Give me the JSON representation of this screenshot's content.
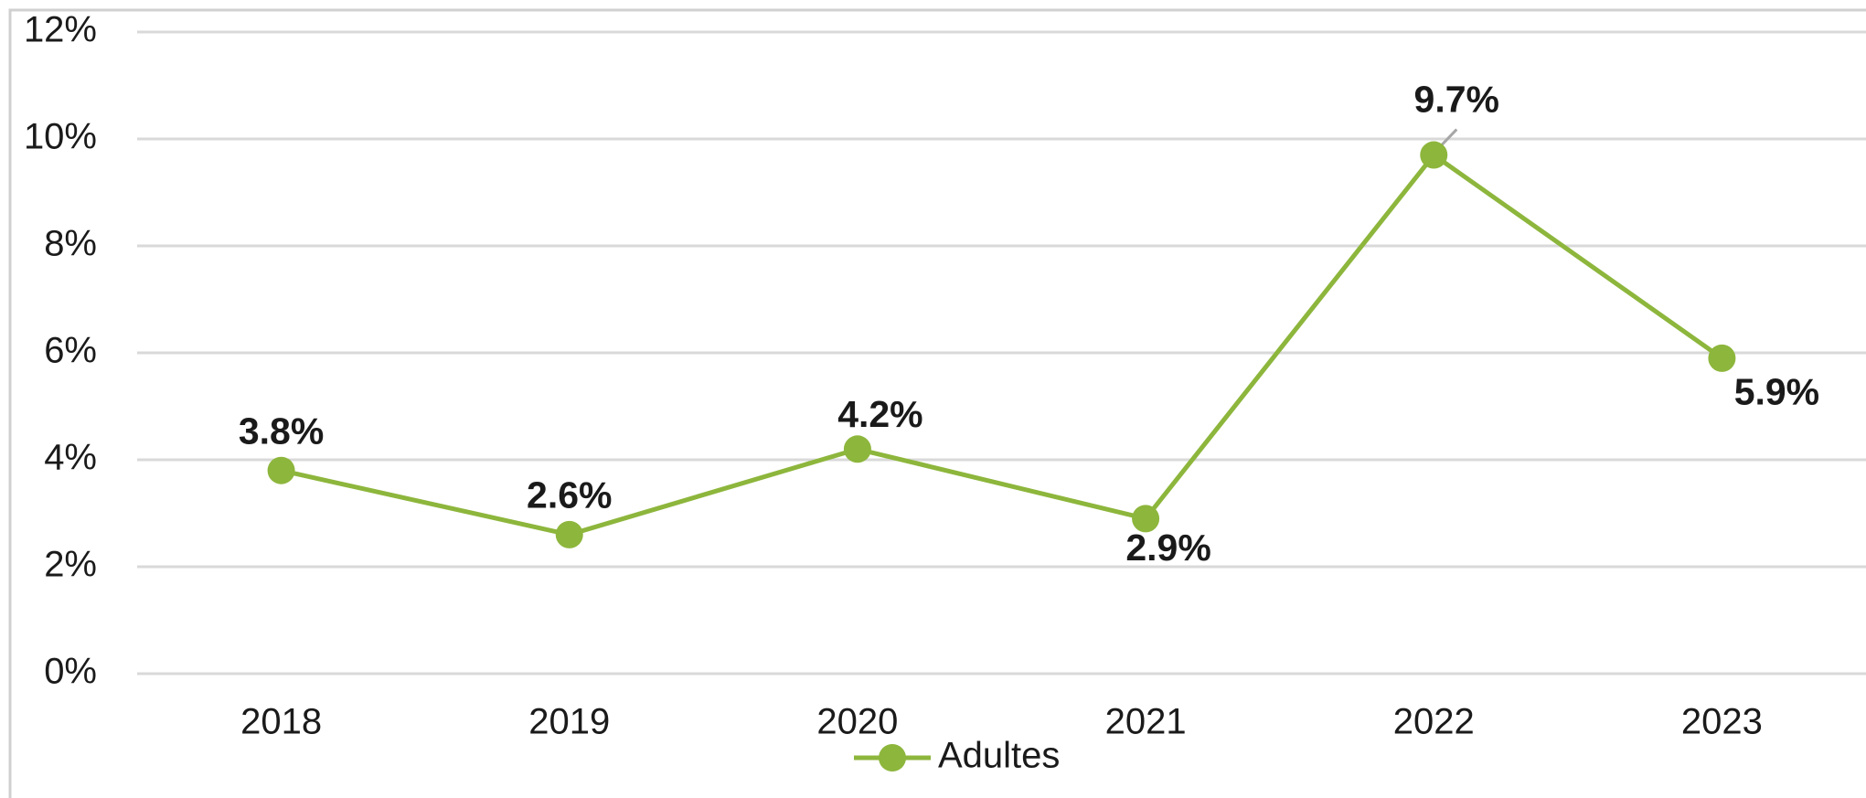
{
  "chart_data": {
    "type": "line",
    "categories": [
      "2018",
      "2019",
      "2020",
      "2021",
      "2022",
      "2023"
    ],
    "series": [
      {
        "name": "Adultes",
        "color": "#8db63c",
        "values": [
          3.8,
          2.6,
          4.2,
          2.9,
          9.7,
          5.9
        ],
        "value_labels": [
          "3.8%",
          "2.6%",
          "4.2%",
          "2.9%",
          "9.7%",
          "5.9%"
        ]
      }
    ],
    "ylim": [
      0,
      12
    ],
    "yticks": [
      {
        "value": 0,
        "label": "0%"
      },
      {
        "value": 2,
        "label": "2%"
      },
      {
        "value": 4,
        "label": "4%"
      },
      {
        "value": 6,
        "label": "6%"
      },
      {
        "value": 8,
        "label": "8%"
      },
      {
        "value": 10,
        "label": "10%"
      },
      {
        "value": 12,
        "label": "12%"
      }
    ],
    "grid": true,
    "legend": "bottom",
    "label_color": "#548235"
  }
}
